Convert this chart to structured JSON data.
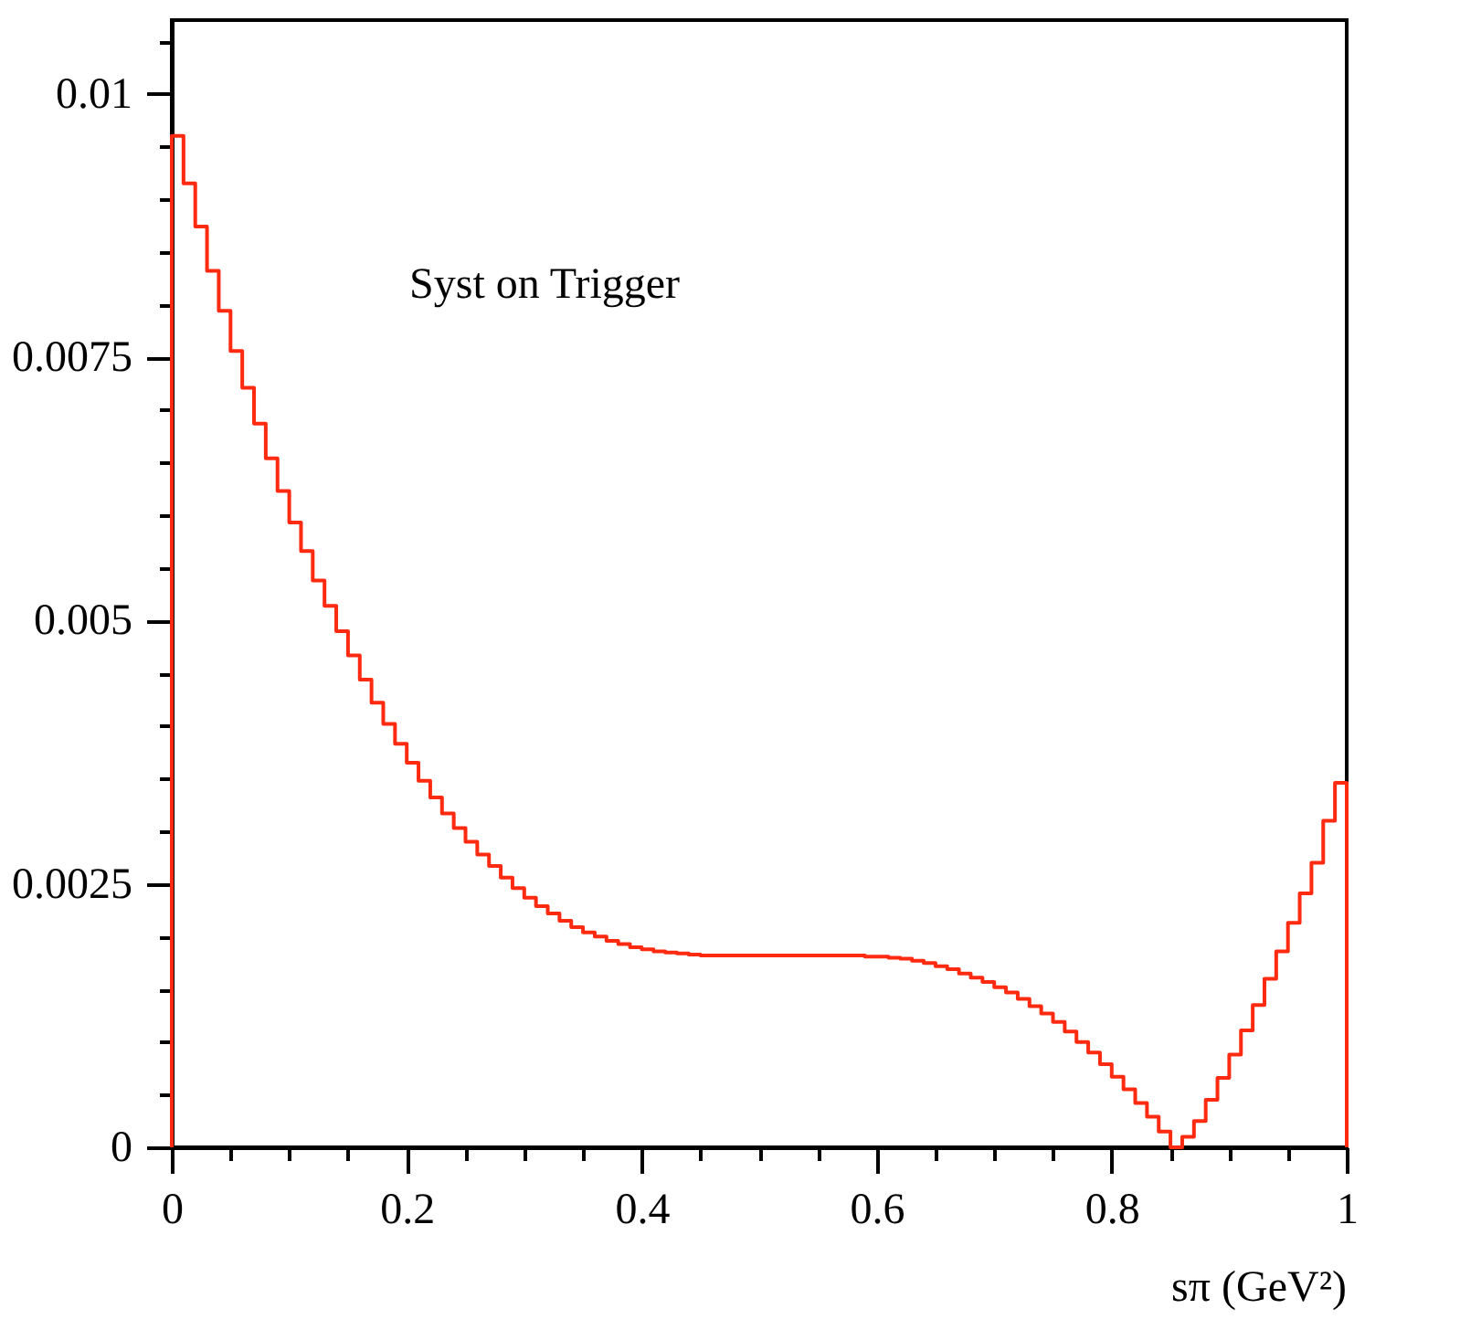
{
  "chart_data": {
    "type": "histogram",
    "xlabel": "sπ (GeV²)",
    "annotations": [
      "Syst on Trigger"
    ],
    "color": "#ff2a10",
    "bins": [
      0,
      0.01,
      0.02,
      0.03,
      0.04,
      0.05,
      0.06,
      0.07,
      0.08,
      0.09,
      0.1,
      0.11,
      0.12,
      0.13,
      0.14,
      0.15,
      0.16,
      0.17,
      0.18,
      0.19,
      0.2,
      0.21,
      0.22,
      0.23,
      0.24,
      0.25,
      0.26,
      0.27,
      0.28,
      0.29,
      0.3,
      0.31,
      0.32,
      0.33,
      0.34,
      0.35,
      0.36,
      0.37,
      0.38,
      0.39,
      0.4,
      0.41,
      0.42,
      0.43,
      0.44,
      0.45,
      0.46,
      0.47,
      0.48,
      0.49,
      0.5,
      0.51,
      0.52,
      0.53,
      0.54,
      0.55,
      0.56,
      0.57,
      0.58,
      0.59,
      0.6,
      0.61,
      0.62,
      0.63,
      0.64,
      0.65,
      0.66,
      0.67,
      0.68,
      0.69,
      0.7,
      0.71,
      0.72,
      0.73,
      0.74,
      0.75,
      0.76,
      0.77,
      0.78,
      0.79,
      0.8,
      0.81,
      0.82,
      0.83,
      0.84,
      0.85,
      0.86,
      0.87,
      0.88,
      0.89,
      0.9,
      0.91,
      0.92,
      0.93,
      0.94,
      0.95,
      0.96,
      0.97,
      0.98,
      0.99,
      1
    ],
    "values": [
      0.0096,
      0.00915,
      0.00874,
      0.00832,
      0.00794,
      0.00756,
      0.00721,
      0.00687,
      0.00654,
      0.00623,
      0.00593,
      0.00566,
      0.00538,
      0.00514,
      0.0049,
      0.00467,
      0.00444,
      0.00422,
      0.00402,
      0.00383,
      0.00365,
      0.00348,
      0.00332,
      0.00317,
      0.00303,
      0.0029,
      0.00278,
      0.00267,
      0.00256,
      0.00246,
      0.00237,
      0.00229,
      0.00222,
      0.00215,
      0.00209,
      0.00204,
      0.002,
      0.00196,
      0.00193,
      0.0019,
      0.00188,
      0.00186,
      0.00185,
      0.00184,
      0.00183,
      0.00182,
      0.00182,
      0.00182,
      0.00182,
      0.00182,
      0.00182,
      0.00182,
      0.00182,
      0.00182,
      0.00182,
      0.00182,
      0.00182,
      0.00182,
      0.00182,
      0.00181,
      0.00181,
      0.0018,
      0.00179,
      0.00177,
      0.00175,
      0.00172,
      0.00169,
      0.00165,
      0.00161,
      0.00157,
      0.00152,
      0.00147,
      0.00141,
      0.00134,
      0.00127,
      0.00119,
      0.0011,
      0.001,
      0.0009,
      0.00079,
      0.00067,
      0.00055,
      0.00042,
      0.00029,
      0.00015,
      0,
      0.0001,
      0.00025,
      0.00045,
      0.00066,
      0.00088,
      0.00111,
      0.00135,
      0.0016,
      0.00186,
      0.00213,
      0.00241,
      0.0027,
      0.0031,
      0.00346
    ],
    "xlim": [
      0,
      1
    ],
    "xticks": [
      0,
      {
        "value": 0.05,
        "label": null
      },
      {
        "value": 0.1,
        "label": null
      },
      {
        "value": 0.15,
        "label": null
      },
      0.2,
      {
        "value": 0.25,
        "label": null
      },
      {
        "value": 0.3,
        "label": null
      },
      {
        "value": 0.35,
        "label": null
      },
      0.4,
      {
        "value": 0.45,
        "label": null
      },
      {
        "value": 0.5,
        "label": null
      },
      {
        "value": 0.55,
        "label": null
      },
      0.6,
      {
        "value": 0.65,
        "label": null
      },
      {
        "value": 0.7,
        "label": null
      },
      {
        "value": 0.75,
        "label": null
      },
      0.8,
      {
        "value": 0.85,
        "label": null
      },
      {
        "value": 0.9,
        "label": null
      },
      {
        "value": 0.95,
        "label": null
      },
      1
    ],
    "ylim": [
      0,
      0.0107
    ],
    "yticks": [
      0,
      {
        "value": 0.0005,
        "label": null
      },
      {
        "value": 0.001,
        "label": null
      },
      {
        "value": 0.0015,
        "label": null
      },
      {
        "value": 0.002,
        "label": null
      },
      0.0025,
      {
        "value": 0.003,
        "label": null
      },
      {
        "value": 0.0035,
        "label": null
      },
      {
        "value": 0.004,
        "label": null
      },
      {
        "value": 0.0045,
        "label": null
      },
      0.005,
      {
        "value": 0.0055,
        "label": null
      },
      {
        "value": 0.006,
        "label": null
      },
      {
        "value": 0.0065,
        "label": null
      },
      {
        "value": 0.007,
        "label": null
      },
      0.0075,
      {
        "value": 0.008,
        "label": null
      },
      {
        "value": 0.0085,
        "label": null
      },
      {
        "value": 0.009,
        "label": null
      },
      {
        "value": 0.0095,
        "label": null
      },
      0.01,
      {
        "value": 0.0105,
        "label": null
      }
    ],
    "grid": false
  }
}
